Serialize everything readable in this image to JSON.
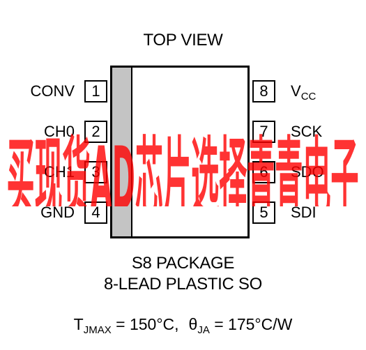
{
  "top_view_label": "TOP VIEW",
  "watermark_text": "买现货AD芯片选择青青电子",
  "watermark_color": "#ff0000",
  "pin1_stripe_color": "#c4c4c4",
  "left_pins": [
    {
      "number": "1",
      "label": "CONV"
    },
    {
      "number": "2",
      "label": "CH0"
    },
    {
      "number": "3",
      "label": "CH1"
    },
    {
      "number": "4",
      "label": "GND"
    }
  ],
  "right_pins": [
    {
      "number": "8",
      "label": "V",
      "label_sub": "CC"
    },
    {
      "number": "7",
      "label": "SCK"
    },
    {
      "number": "6",
      "label": "SDO"
    },
    {
      "number": "5",
      "label": "SDI"
    }
  ],
  "package_name": "S8 PACKAGE",
  "package_desc": "8-LEAD PLASTIC SO",
  "thermal": {
    "t_symbol": "T",
    "t_sub": "JMAX",
    "t_value": " = 150°C,",
    "theta_symbol": "θ",
    "theta_sub": "JA",
    "theta_value": " = 175°C/W"
  }
}
